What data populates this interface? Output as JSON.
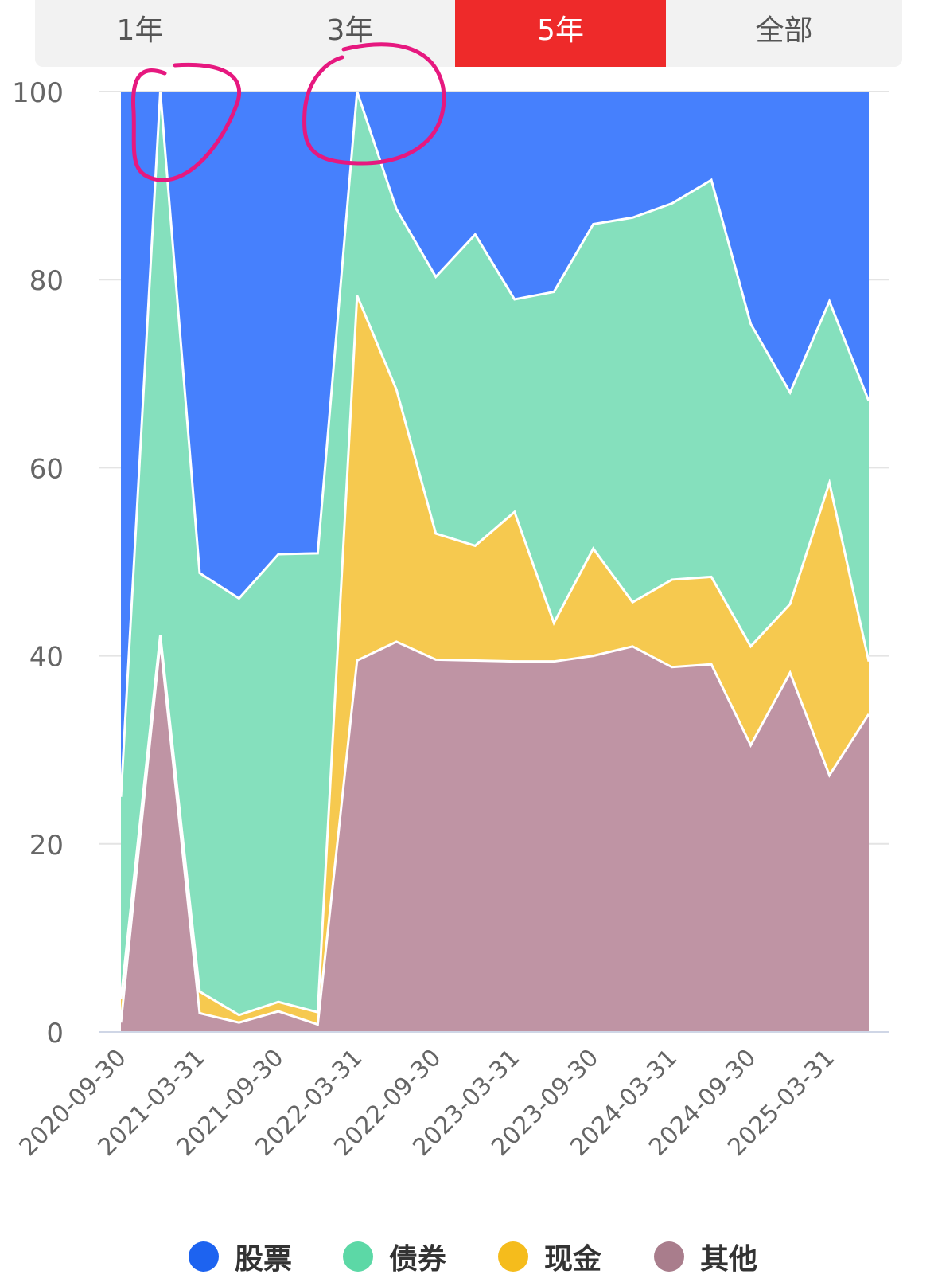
{
  "tabs": [
    {
      "label": "1年",
      "active": false
    },
    {
      "label": "3年",
      "active": false
    },
    {
      "label": "5年",
      "active": true
    },
    {
      "label": "全部",
      "active": false
    }
  ],
  "colors": {
    "stock": "#4680fd",
    "bond": "#85e0bd",
    "cash": "#f6c94f",
    "other": "#bf94a4",
    "legend_stock": "#1d63f0",
    "legend_bond": "#5cd8a6",
    "legend_cash": "#f5bc1c",
    "legend_other": "#a97d8c",
    "annotation": "#e6187f",
    "tab_active": "#ee2a2a"
  },
  "legend": [
    {
      "label": "股票",
      "color": "#1d63f0"
    },
    {
      "label": "债券",
      "color": "#5cd8a6"
    },
    {
      "label": "现金",
      "color": "#f5bc1c"
    },
    {
      "label": "其他",
      "color": "#a97d8c"
    }
  ],
  "chart_data": {
    "type": "area",
    "stacked": true,
    "x": [
      "2020-09-30",
      "2020-12-31",
      "2021-03-31",
      "2021-06-30",
      "2021-09-30",
      "2021-12-31",
      "2022-03-31",
      "2022-06-30",
      "2022-09-30",
      "2022-12-31",
      "2023-03-31",
      "2023-06-30",
      "2023-09-30",
      "2023-12-31",
      "2024-03-31",
      "2024-06-30",
      "2024-09-30",
      "2024-12-31",
      "2025-03-31",
      "2025-06-30"
    ],
    "xtick_labels": [
      "2020-09-30",
      "2021-03-31",
      "2021-09-30",
      "2022-03-31",
      "2022-09-30",
      "2023-03-31",
      "2023-09-30",
      "2024-03-31",
      "2024-09-30",
      "2025-03-31"
    ],
    "yticks": [
      0,
      20,
      40,
      60,
      80,
      100
    ],
    "ylim": [
      0,
      100
    ],
    "grid": true,
    "legend_position": "bottom",
    "series": [
      {
        "name": "其他",
        "values": [
          1.0,
          41.5,
          2.0,
          1.0,
          2.2,
          0.8,
          39.5,
          41.5,
          39.6,
          39.5,
          39.4,
          39.4,
          40.0,
          41.0,
          38.8,
          39.1,
          30.5,
          38.2,
          27.3,
          33.8
        ]
      },
      {
        "name": "现金",
        "values": [
          2.5,
          0.7,
          2.3,
          0.8,
          1.0,
          1.3,
          38.8,
          26.8,
          13.4,
          12.2,
          15.9,
          4.1,
          11.4,
          4.7,
          9.3,
          9.3,
          10.5,
          7.3,
          31.1,
          5.6
        ]
      },
      {
        "name": "债券",
        "values": [
          21.5,
          57.8,
          44.5,
          44.3,
          47.6,
          48.8,
          21.7,
          19.2,
          27.3,
          33.1,
          22.6,
          35.2,
          34.5,
          40.9,
          40.0,
          42.2,
          34.3,
          22.5,
          19.3,
          27.7
        ]
      },
      {
        "name": "股票",
        "values": [
          75.0,
          0.0,
          51.2,
          53.9,
          49.2,
          49.1,
          0.0,
          12.5,
          19.7,
          15.2,
          22.1,
          21.3,
          14.1,
          13.4,
          11.9,
          9.4,
          24.7,
          32.0,
          22.3,
          32.9
        ]
      }
    ]
  }
}
